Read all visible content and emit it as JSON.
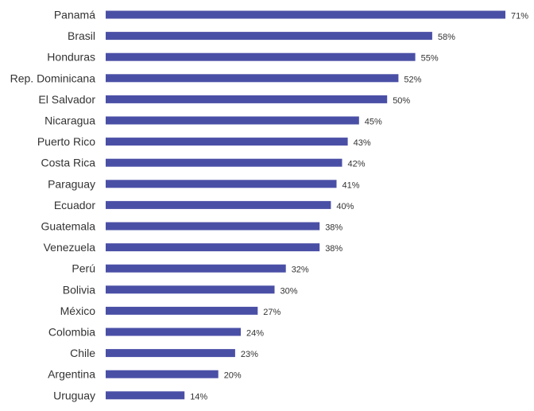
{
  "colors": {
    "bar": "#4a4fa6",
    "text": "#333333",
    "background": "#ffffff"
  },
  "chart_data": {
    "type": "bar",
    "orientation": "horizontal",
    "title": "",
    "xlabel": "",
    "ylabel": "",
    "grid": false,
    "legend": "none",
    "value_suffix": "%",
    "xlim": [
      0,
      71
    ],
    "categories": [
      "Panamá",
      "Brasil",
      "Honduras",
      "Rep. Dominicana",
      "El Salvador",
      "Nicaragua",
      "Puerto Rico",
      "Costa Rica",
      "Paraguay",
      "Ecuador",
      "Guatemala",
      "Venezuela",
      "Perú",
      "Bolivia",
      "México",
      "Colombia",
      "Chile",
      "Argentina",
      "Uruguay"
    ],
    "values": [
      71,
      58,
      55,
      52,
      50,
      45,
      43,
      42,
      41,
      40,
      38,
      38,
      32,
      30,
      27,
      24,
      23,
      20,
      14
    ],
    "value_labels": [
      "71%",
      "58%",
      "55%",
      "52%",
      "50%",
      "45%",
      "43%",
      "42%",
      "41%",
      "40%",
      "38%",
      "38%",
      "32%",
      "30%",
      "27%",
      "24%",
      "23%",
      "20%",
      "14%"
    ]
  }
}
